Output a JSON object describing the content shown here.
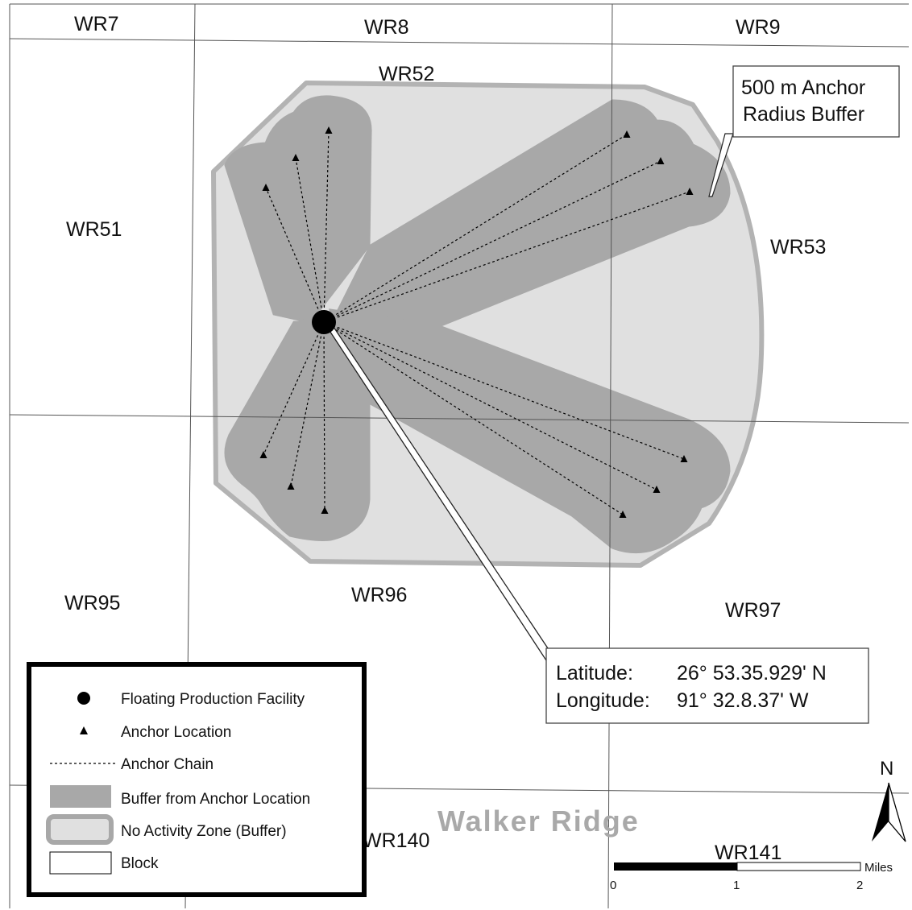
{
  "colors": {
    "buffer": "#a8a8a8",
    "no_activity_fill": "#e0e0e0",
    "no_activity_outline": "#b3b3b3",
    "grid": "#555555"
  },
  "blocks": {
    "wr7": "WR7",
    "wr8": "WR8",
    "wr9": "WR9",
    "wr51": "WR51",
    "wr52": "WR52",
    "wr53": "WR53",
    "wr95": "WR95",
    "wr96": "WR96",
    "wr97": "WR97",
    "wr140": "WR140",
    "wr141": "WR141"
  },
  "area_name": "Walker Ridge",
  "buffer_callout": {
    "line1": "500 m Anchor",
    "line2": "Radius Buffer"
  },
  "location_callout": {
    "lat_label": "Latitude:",
    "lat_value": "26° 53.35.929' N",
    "lon_label": "Longitude:",
    "lon_value": "91° 32.8.37' W"
  },
  "legend": {
    "facility": "Floating Production Facility",
    "anchor": "Anchor Location",
    "chain": "Anchor Chain",
    "buffer": "Buffer from Anchor Location",
    "no_activity": "No Activity Zone (Buffer)",
    "block": "Block"
  },
  "scale_bar": {
    "ticks": [
      "0",
      "1",
      "2"
    ],
    "unit": "Miles"
  },
  "north_arrow": {
    "label": "N"
  }
}
